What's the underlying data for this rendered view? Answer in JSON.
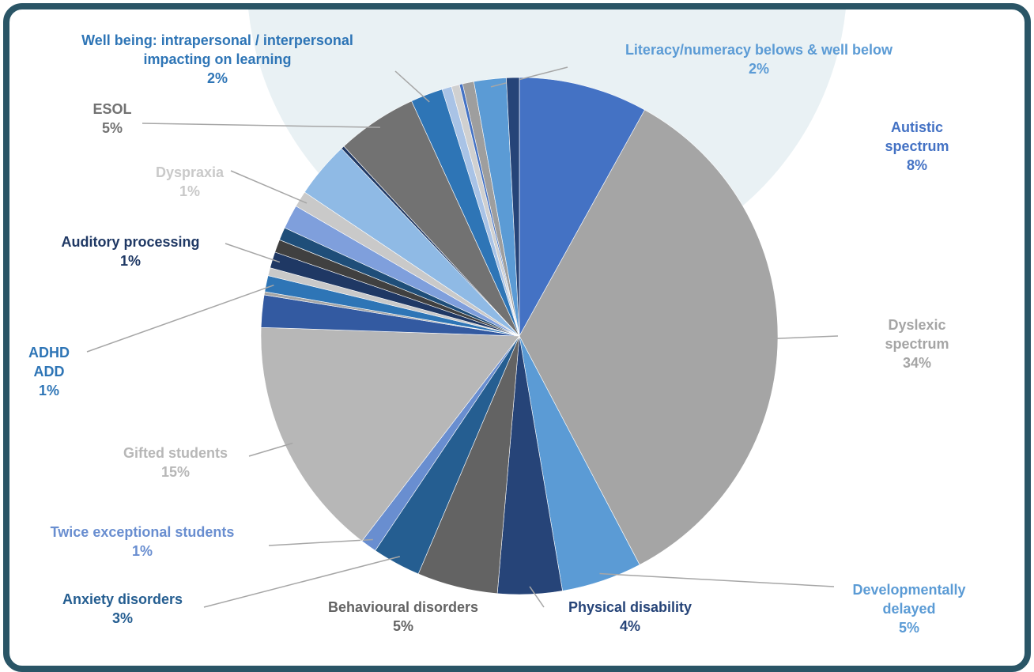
{
  "chart_data": {
    "type": "pie",
    "categories": [
      "Autistic spectrum",
      "Dyslexic spectrum",
      "Developmentally\ndelayed",
      "Physical disability",
      "Behavioural disorders",
      "Anxiety disorders",
      "Twice exceptional students",
      "Gifted students",
      null,
      null,
      "ADHD\nADD",
      null,
      "Auditory processing",
      null,
      null,
      null,
      "Dyspraxia",
      null,
      null,
      "ESOL",
      "Well being: intrapersonal / interpersonal\nimpacting on learning",
      null,
      null,
      null,
      null,
      "Literacy/numeracy belows & well below",
      null
    ],
    "values": [
      8,
      34,
      5,
      4,
      5,
      3,
      1,
      15,
      2,
      0.2,
      1,
      0.5,
      1,
      0.8,
      0.8,
      1.5,
      1,
      3.5,
      0.2,
      5,
      2,
      0.6,
      0.5,
      0.2,
      0.7,
      2,
      0.8
    ],
    "value_labels": [
      "8%",
      "34%",
      "5%",
      "4%",
      "5%",
      "3%",
      "1%",
      "15%",
      null,
      null,
      "1%",
      null,
      "1%",
      null,
      null,
      null,
      "1%",
      null,
      null,
      "5%",
      "2%",
      null,
      null,
      null,
      null,
      "2%",
      null
    ],
    "colors": [
      "#4472c4",
      "#a5a5a5",
      "#5b9bd5",
      "#264478",
      "#636363",
      "#255e91",
      "#698ed0",
      "#b7b7b7",
      "#335aa1",
      "#a5a5a5",
      "#2e75b6",
      "#c9c9c9",
      "#1f3864",
      "#404040",
      "#1f4e79",
      "#7f9fdc",
      "#c9c9c9",
      "#8fbae5",
      "#1f3864",
      "#727272",
      "#2e75b6",
      "#a9c3e6",
      "#d0d0d0",
      "#4472c4",
      "#9e9e9e",
      "#5b9bd5",
      "#264478"
    ]
  }
}
